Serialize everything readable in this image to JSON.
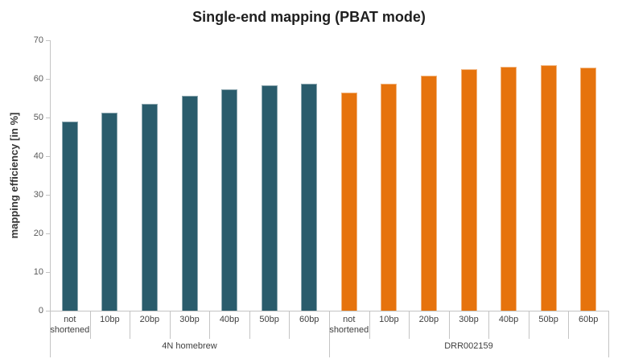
{
  "chart_data": {
    "type": "bar",
    "title": "Single-end mapping (PBAT mode)",
    "xlabel": "",
    "ylabel": "mapping efficiency [in %]",
    "ylim": [
      0,
      70
    ],
    "yticks": [
      0,
      10,
      20,
      30,
      40,
      50,
      60,
      70
    ],
    "grid": false,
    "legend": "none",
    "axis_style": "two-level category axis; each series rendered as its own contiguous group of bars",
    "categories": [
      "not shortened",
      "10bp",
      "20bp",
      "30bp",
      "40bp",
      "50bp",
      "60bp"
    ],
    "series": [
      {
        "name": "4N homebrew",
        "color": "#2A5C6C",
        "values": [
          48.9,
          51.3,
          53.6,
          55.6,
          57.3,
          58.4,
          58.7
        ]
      },
      {
        "name": "DRR002159",
        "color": "#E6730D",
        "values": [
          56.4,
          58.8,
          60.8,
          62.4,
          63.2,
          63.5,
          62.9
        ]
      }
    ]
  },
  "colors": {
    "axis_line": "#c4c4c4",
    "tick_text": "#595959",
    "category_text": "#3f3f3f",
    "title_text": "#1f1f1f",
    "background": "#ffffff"
  }
}
